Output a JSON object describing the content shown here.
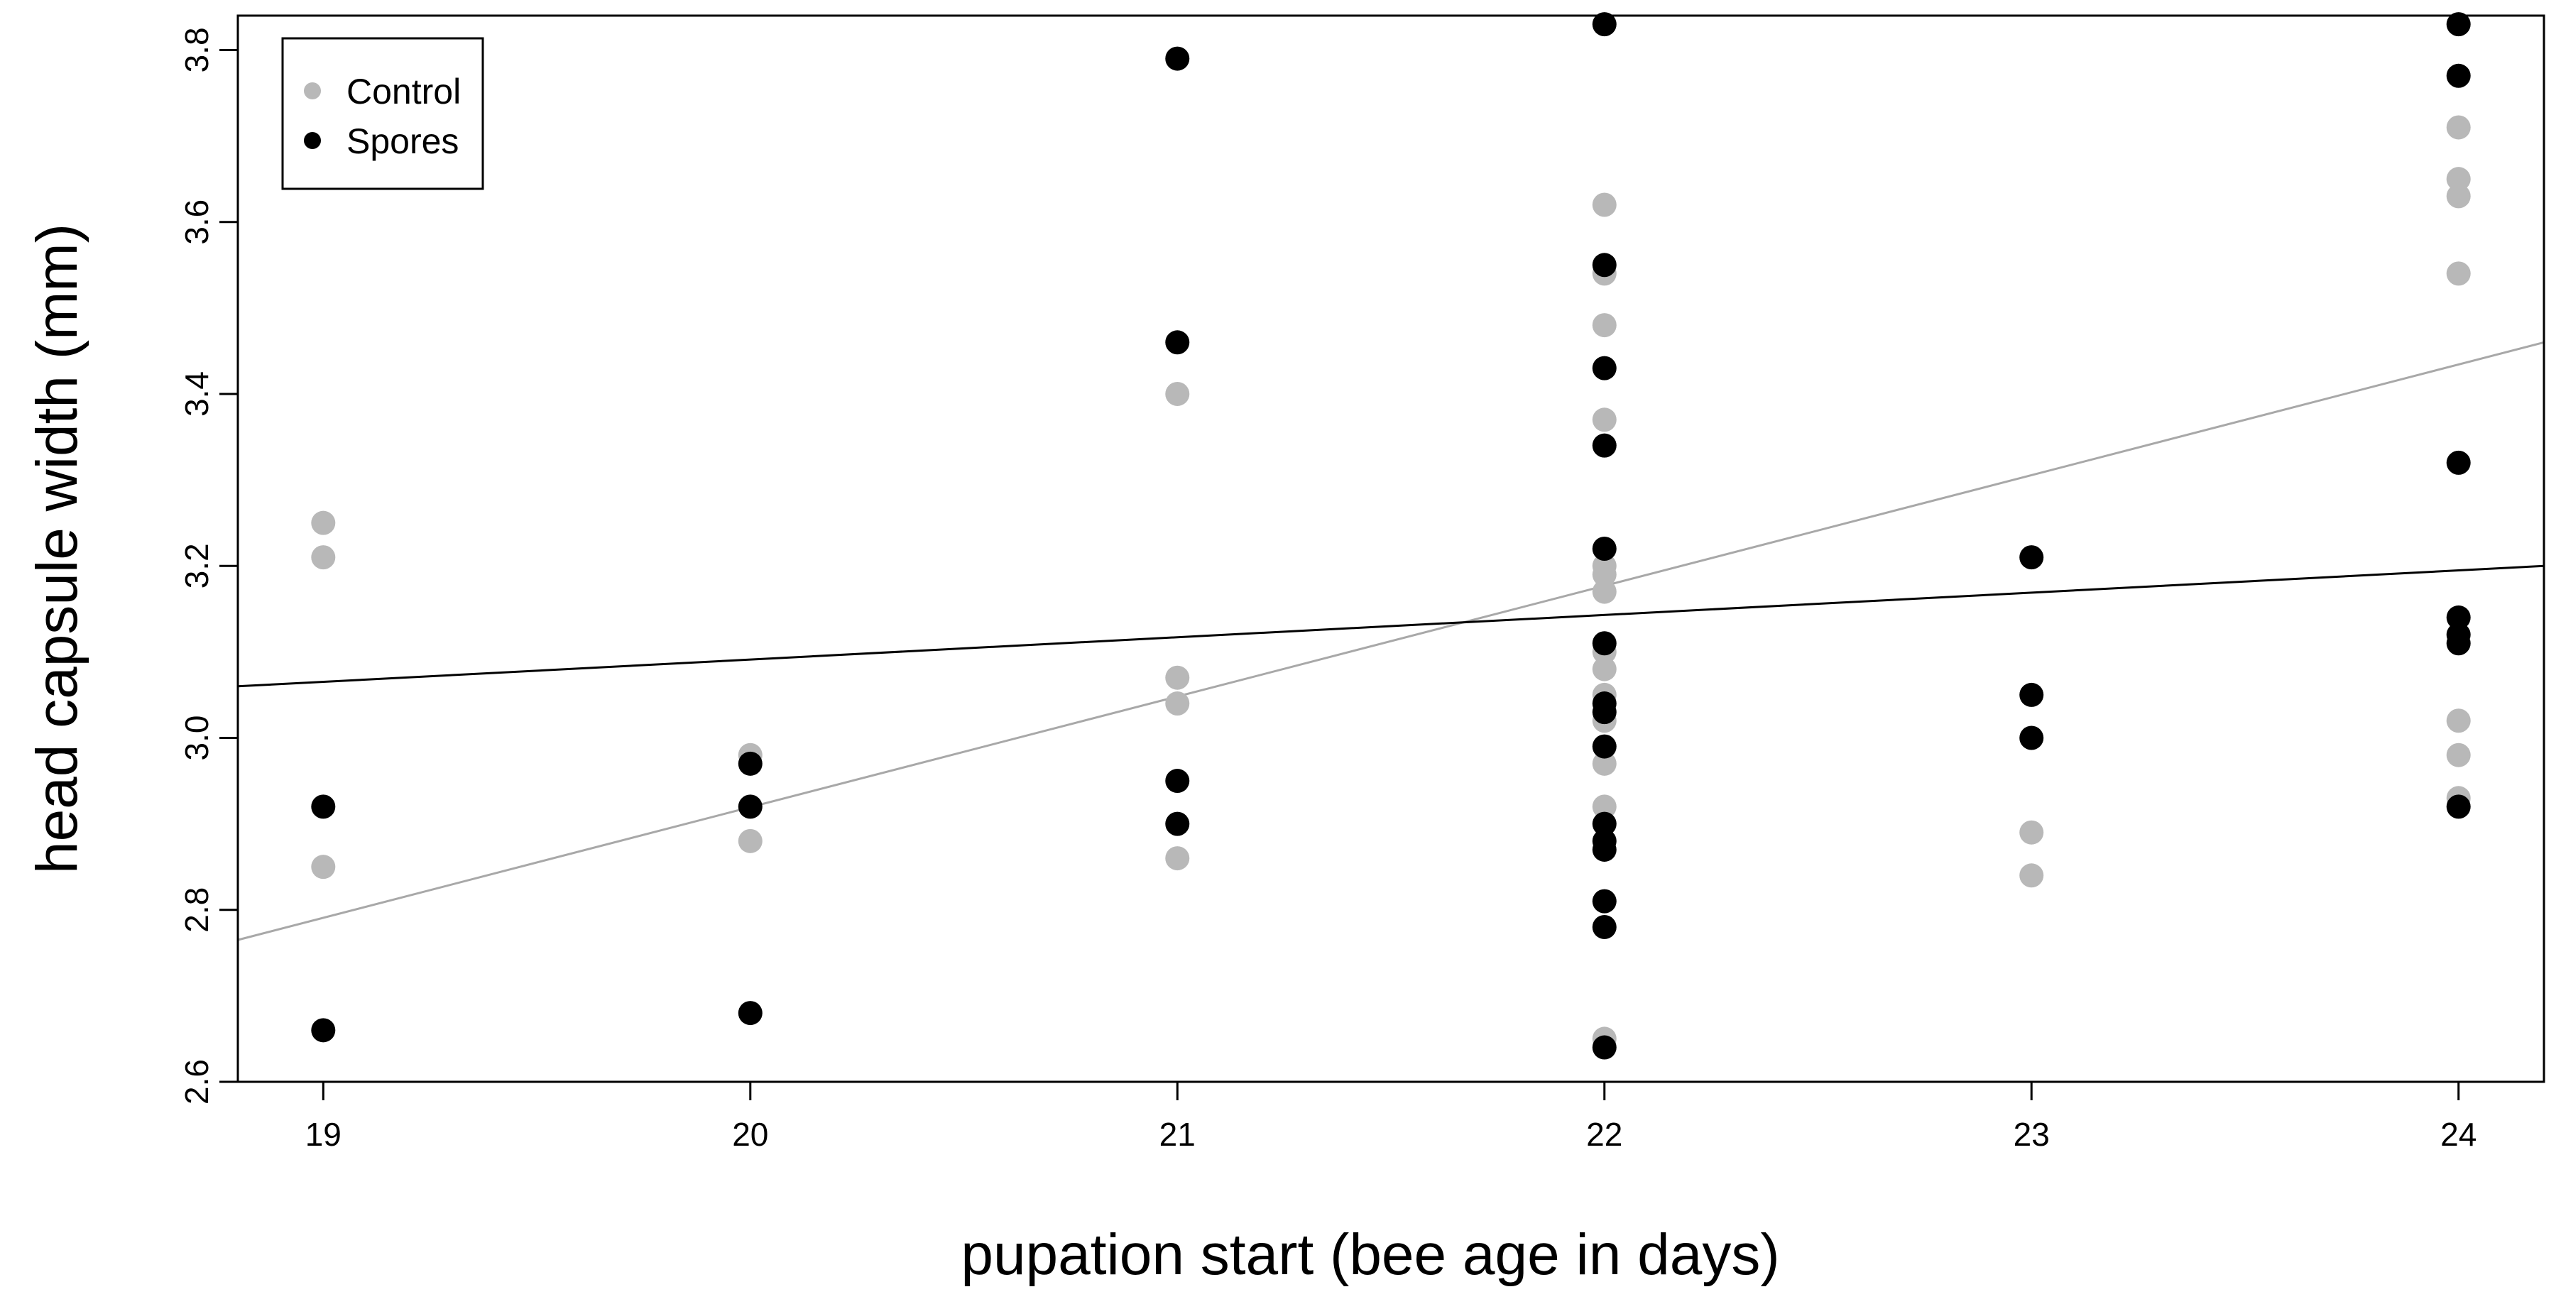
{
  "chart_data": {
    "type": "scatter",
    "title": "",
    "xlabel": "pupation start (bee age in days)",
    "ylabel": "head capsule width (mm)",
    "xlim": [
      18.8,
      24.2
    ],
    "ylim": [
      2.6,
      3.84
    ],
    "xticks": [
      19,
      20,
      21,
      22,
      23,
      24
    ],
    "xtick_labels": [
      "19",
      "20",
      "21",
      "22",
      "23",
      "24"
    ],
    "yticks": [
      2.6,
      2.8,
      3.0,
      3.2,
      3.4,
      3.6,
      3.8
    ],
    "ytick_labels": [
      "2.6",
      "2.8",
      "3.0",
      "3.2",
      "3.4",
      "3.6",
      "3.8"
    ],
    "grid": false,
    "legend_position": "top-left",
    "colors": {
      "control": "#b8b8b8",
      "spores": "#000000"
    },
    "series": [
      {
        "name": "Control",
        "color": "#b8b8b8",
        "points": [
          [
            19,
            3.25
          ],
          [
            19,
            3.21
          ],
          [
            19,
            2.85
          ],
          [
            20,
            2.98
          ],
          [
            20,
            2.88
          ],
          [
            21,
            3.4
          ],
          [
            21,
            3.07
          ],
          [
            21,
            3.04
          ],
          [
            21,
            2.86
          ],
          [
            22,
            3.62
          ],
          [
            22,
            3.54
          ],
          [
            22,
            3.48
          ],
          [
            22,
            3.37
          ],
          [
            22,
            3.2
          ],
          [
            22,
            3.19
          ],
          [
            22,
            3.17
          ],
          [
            22,
            3.1
          ],
          [
            22,
            3.08
          ],
          [
            22,
            3.05
          ],
          [
            22,
            3.02
          ],
          [
            22,
            2.97
          ],
          [
            22,
            2.92
          ],
          [
            22,
            2.65
          ],
          [
            23,
            2.89
          ],
          [
            23,
            2.84
          ],
          [
            24,
            3.71
          ],
          [
            24,
            3.65
          ],
          [
            24,
            3.63
          ],
          [
            24,
            3.54
          ],
          [
            24,
            3.02
          ],
          [
            24,
            2.98
          ],
          [
            24,
            2.93
          ]
        ],
        "fit_line": {
          "x": [
            18.8,
            24.2
          ],
          "y": [
            2.765,
            3.46
          ]
        }
      },
      {
        "name": "Spores",
        "color": "#000000",
        "points": [
          [
            19,
            2.92
          ],
          [
            19,
            2.66
          ],
          [
            20,
            2.97
          ],
          [
            20,
            2.92
          ],
          [
            20,
            2.68
          ],
          [
            21,
            3.79
          ],
          [
            21,
            3.46
          ],
          [
            21,
            2.95
          ],
          [
            21,
            2.9
          ],
          [
            22,
            3.83
          ],
          [
            22,
            3.55
          ],
          [
            22,
            3.43
          ],
          [
            22,
            3.34
          ],
          [
            22,
            3.22
          ],
          [
            22,
            3.11
          ],
          [
            22,
            3.04
          ],
          [
            22,
            3.03
          ],
          [
            22,
            2.99
          ],
          [
            22,
            2.9
          ],
          [
            22,
            2.88
          ],
          [
            22,
            2.87
          ],
          [
            22,
            2.81
          ],
          [
            22,
            2.78
          ],
          [
            22,
            2.64
          ],
          [
            23,
            3.21
          ],
          [
            23,
            3.05
          ],
          [
            23,
            3.0
          ],
          [
            24,
            3.83
          ],
          [
            24,
            3.77
          ],
          [
            24,
            3.32
          ],
          [
            24,
            3.14
          ],
          [
            24,
            3.12
          ],
          [
            24,
            3.11
          ],
          [
            24,
            2.92
          ]
        ],
        "fit_line": {
          "x": [
            18.8,
            24.2
          ],
          "y": [
            3.06,
            3.2
          ]
        }
      }
    ]
  }
}
